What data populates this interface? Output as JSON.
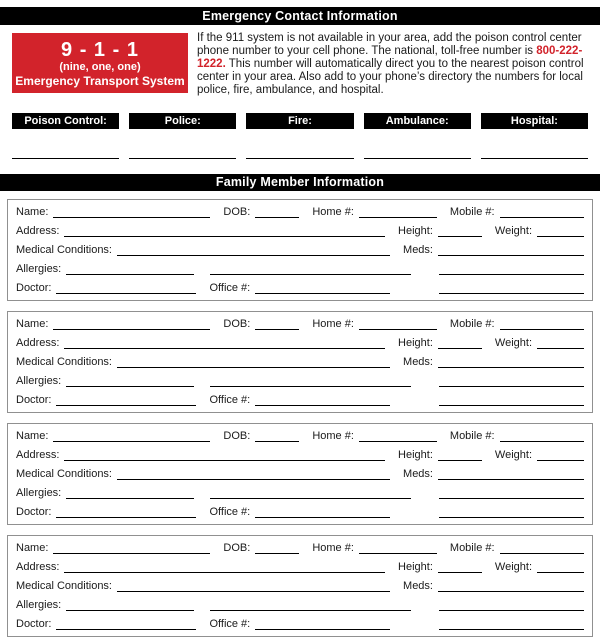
{
  "document": {
    "section1_title": "Emergency Contact Information",
    "section2_title": "Family Member Information"
  },
  "emergency_box": {
    "number": "9 - 1 - 1",
    "pronunciation": "(nine, one, one)",
    "label": "Emergency Transport System"
  },
  "info_text": {
    "before_phone": "If the 911 system is not available in your area, add the poison control center phone number to your cell phone. The national, toll-free number is ",
    "phone_number": "800-222-1222.",
    "after_phone": " This number will automatically direct you to the nearest poison control center in your area. Also add to your phone’s directory the numbers for local police, fire, ambulance, and hospital."
  },
  "emergency_contacts": {
    "labels": [
      "Poison Control:",
      "Police:",
      "Fire:",
      "Ambulance:",
      "Hospital:"
    ]
  },
  "family_members": {
    "block_count": 4,
    "field_labels": {
      "name": "Name:",
      "dob": "DOB:",
      "home_phone": "Home #:",
      "mobile_phone": "Mobile #:",
      "address": "Address:",
      "height": "Height:",
      "weight": "Weight:",
      "medical_conditions": "Medical Conditions:",
      "meds": "Meds:",
      "allergies": "Allergies:",
      "doctor": "Doctor:",
      "office_phone": "Office #:"
    }
  },
  "colors": {
    "accent_red": "#D2232B",
    "banner_background": "#000000"
  }
}
